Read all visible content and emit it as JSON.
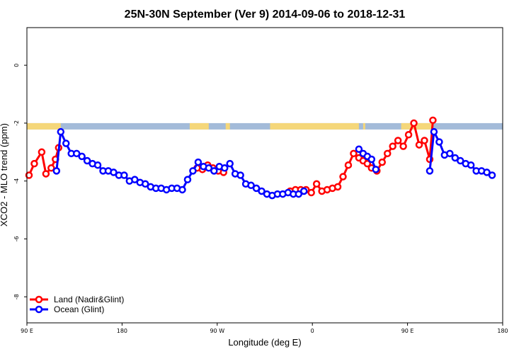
{
  "chart_data": {
    "type": "line",
    "title": "25N-30N September (Ver 9)   2014-09-06 to 2018-12-31",
    "xlabel": "Longitude (deg E)",
    "ylabel": "XCO2 - MLO trend (ppm)",
    "xlim": [
      90,
      540
    ],
    "ylim": [
      -8.9,
      1.3
    ],
    "x_ticks": [
      {
        "value": 90,
        "label": "90 E"
      },
      {
        "value": 180,
        "label": "180"
      },
      {
        "value": 270,
        "label": "90 W"
      },
      {
        "value": 360,
        "label": "0"
      },
      {
        "value": 450,
        "label": "90 E"
      },
      {
        "value": 540,
        "label": "180"
      }
    ],
    "y_ticks": [
      {
        "value": 0,
        "label": "0"
      },
      {
        "value": -2,
        "label": "-2"
      },
      {
        "value": -4,
        "label": "-4"
      },
      {
        "value": -6,
        "label": "-6"
      },
      {
        "value": -8,
        "label": "-8"
      }
    ],
    "legend_position": "bottom-left",
    "land_ocean_strip": {
      "y_range": [
        -2.22,
        -2.0
      ],
      "land_color": "#f5d77a",
      "ocean_color": "#a3bbd9",
      "land_spans": [
        [
          90,
          122
        ],
        [
          244,
          262
        ],
        [
          278,
          282
        ],
        [
          320,
          404
        ],
        [
          408,
          410
        ],
        [
          444,
          474
        ],
        [
          540,
          545
        ]
      ]
    },
    "series": [
      {
        "name": "Land (Nadir&Glint)",
        "color": "#ff0000",
        "points": [
          [
            92,
            -3.8
          ],
          [
            97,
            -3.4
          ],
          [
            104,
            -3.0
          ],
          [
            108,
            -3.75
          ],
          [
            113,
            -3.55
          ],
          [
            117,
            -3.25
          ],
          [
            120,
            -2.85
          ],
          [
            251,
            -3.55
          ],
          [
            256,
            -3.6
          ],
          [
            261,
            -3.45
          ],
          [
            266,
            -3.55
          ],
          [
            271,
            -3.65
          ],
          [
            276,
            -3.7
          ],
          [
            339,
            -4.35
          ],
          [
            344,
            -4.3
          ],
          [
            349,
            -4.3
          ],
          [
            354,
            -4.3
          ],
          [
            359,
            -4.4
          ],
          [
            364,
            -4.1
          ],
          [
            369,
            -4.35
          ],
          [
            374,
            -4.3
          ],
          [
            379,
            -4.25
          ],
          [
            384,
            -4.2
          ],
          [
            389,
            -3.85
          ],
          [
            394,
            -3.45
          ],
          [
            399,
            -3.05
          ],
          [
            404,
            -3.2
          ],
          [
            408,
            -3.3
          ],
          [
            412,
            -3.4
          ],
          [
            416,
            -3.55
          ],
          [
            421,
            -3.65
          ],
          [
            426,
            -3.35
          ],
          [
            431,
            -3.05
          ],
          [
            436,
            -2.8
          ],
          [
            441,
            -2.6
          ],
          [
            446,
            -2.8
          ],
          [
            451,
            -2.4
          ],
          [
            456,
            -2.0
          ],
          [
            461,
            -2.75
          ],
          [
            466,
            -2.6
          ],
          [
            471,
            -3.25
          ],
          [
            474,
            -1.9
          ]
        ]
      },
      {
        "name": "Ocean (Glint)",
        "color": "#0000ff",
        "points": [
          [
            118,
            -3.65
          ],
          [
            122,
            -2.3
          ],
          [
            127,
            -2.7
          ],
          [
            132,
            -3.05
          ],
          [
            137,
            -3.05
          ],
          [
            142,
            -3.15
          ],
          [
            147,
            -3.3
          ],
          [
            152,
            -3.4
          ],
          [
            157,
            -3.45
          ],
          [
            162,
            -3.65
          ],
          [
            167,
            -3.65
          ],
          [
            172,
            -3.7
          ],
          [
            177,
            -3.8
          ],
          [
            182,
            -3.8
          ],
          [
            187,
            -4.0
          ],
          [
            192,
            -3.95
          ],
          [
            197,
            -4.05
          ],
          [
            202,
            -4.1
          ],
          [
            207,
            -4.2
          ],
          [
            212,
            -4.25
          ],
          [
            217,
            -4.25
          ],
          [
            222,
            -4.3
          ],
          [
            227,
            -4.25
          ],
          [
            232,
            -4.25
          ],
          [
            237,
            -4.3
          ],
          [
            242,
            -3.95
          ],
          [
            247,
            -3.65
          ],
          [
            252,
            -3.35
          ],
          [
            257,
            -3.5
          ],
          [
            262,
            -3.55
          ],
          [
            267,
            -3.65
          ],
          [
            272,
            -3.5
          ],
          [
            277,
            -3.55
          ],
          [
            282,
            -3.4
          ],
          [
            287,
            -3.75
          ],
          [
            292,
            -3.8
          ],
          [
            297,
            -4.1
          ],
          [
            302,
            -4.15
          ],
          [
            307,
            -4.25
          ],
          [
            312,
            -4.35
          ],
          [
            317,
            -4.45
          ],
          [
            322,
            -4.5
          ],
          [
            327,
            -4.45
          ],
          [
            332,
            -4.45
          ],
          [
            337,
            -4.4
          ],
          [
            342,
            -4.45
          ],
          [
            347,
            -4.45
          ],
          [
            352,
            -4.35
          ],
          [
            404,
            -2.9
          ],
          [
            408,
            -3.05
          ],
          [
            412,
            -3.15
          ],
          [
            416,
            -3.25
          ],
          [
            420,
            -3.6
          ],
          [
            471,
            -3.65
          ],
          [
            475,
            -2.3
          ],
          [
            480,
            -2.65
          ],
          [
            485,
            -3.1
          ],
          [
            490,
            -3.05
          ],
          [
            495,
            -3.2
          ],
          [
            500,
            -3.3
          ],
          [
            505,
            -3.4
          ],
          [
            510,
            -3.45
          ],
          [
            515,
            -3.65
          ],
          [
            520,
            -3.65
          ],
          [
            525,
            -3.7
          ],
          [
            530,
            -3.8
          ]
        ]
      }
    ]
  }
}
